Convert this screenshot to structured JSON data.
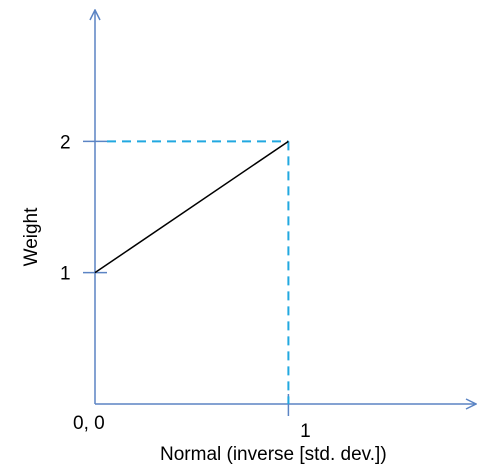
{
  "chart_data": {
    "type": "line",
    "title": "",
    "xlabel": "Normal (inverse [std. dev.])",
    "ylabel": "Weight",
    "origin_label": "0, 0",
    "x_ticks": [
      {
        "value": 1,
        "label": "1"
      }
    ],
    "y_ticks": [
      {
        "value": 1,
        "label": "1"
      },
      {
        "value": 2,
        "label": "2"
      }
    ],
    "xlim": [
      0,
      1.97
    ],
    "ylim": [
      0,
      3.0
    ],
    "series": [
      {
        "x": [
          0,
          1
        ],
        "y": [
          1,
          2
        ]
      }
    ],
    "guides": [
      {
        "kind": "horizontal",
        "y": 2,
        "x_from": 0,
        "x_to": 1
      },
      {
        "kind": "vertical",
        "x": 1,
        "y_from": 0,
        "y_to": 2
      }
    ],
    "colors": {
      "axis": "#5b84c4",
      "line": "#000000",
      "guide": "#21a8e0"
    },
    "grid": false,
    "legend": "none"
  }
}
